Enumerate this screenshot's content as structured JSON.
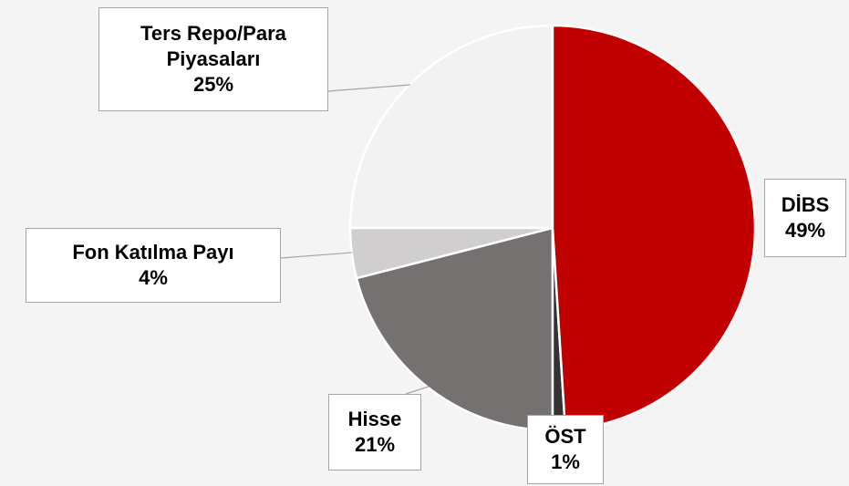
{
  "chart_data": {
    "type": "pie",
    "categories": [
      "DİBS",
      "ÖST",
      "Hisse",
      "Fon Katılma Payı",
      "Ters Repo/Para Piyasaları"
    ],
    "values": [
      49,
      1,
      21,
      4,
      25
    ],
    "value_labels": [
      "49%",
      "1%",
      "21%",
      "4%",
      "25%"
    ],
    "colors": [
      "#c00000",
      "#333333",
      "#767171",
      "#d0cece",
      "#f2f2f2"
    ]
  }
}
